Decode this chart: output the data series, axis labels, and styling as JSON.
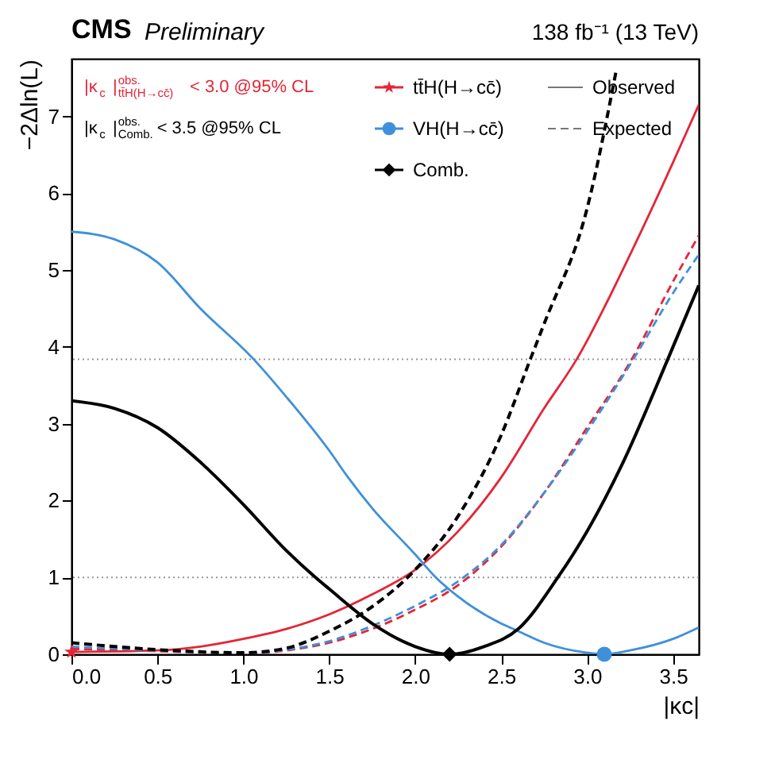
{
  "chart_data": {
    "type": "line",
    "title": "CMS Preliminary",
    "xlabel": "|κc|",
    "ylabel": "−2Δln(L)",
    "xlim": [
      0,
      3.65
    ],
    "xticks": [
      {
        "value": 0,
        "label": "0.0"
      },
      0.5,
      {
        "value": 1,
        "label": "1.0"
      },
      1.5,
      {
        "value": 2,
        "label": "2.0"
      },
      2.5,
      {
        "value": 3,
        "label": "3.0"
      },
      3.5
    ],
    "ylim": [
      0,
      7.75
    ],
    "yticks": [
      0,
      1,
      2,
      3,
      4,
      5,
      6,
      7
    ],
    "grid": false,
    "legend": "top",
    "series": [
      {
        "color": "#e42536",
        "line_style": "solid",
        "x": [
          0,
          0.5,
          0.75,
          1.0,
          1.25,
          1.5,
          1.75,
          2.0,
          2.25,
          2.5,
          2.75,
          2.94,
          3.25,
          3.5,
          3.62,
          3.65
        ],
        "values": [
          0.03,
          0.05,
          0.1,
          0.2,
          0.33,
          0.52,
          0.78,
          1.1,
          1.6,
          2.3,
          3.2,
          3.84,
          5.2,
          6.4,
          7.0,
          7.15
        ]
      },
      {
        "color": "#e42536",
        "line_style": "dashed",
        "x": [
          0,
          0.5,
          1.0,
          1.25,
          1.5,
          1.75,
          2.0,
          2.25,
          2.5,
          2.75,
          3.0,
          3.25,
          3.5,
          3.65
        ],
        "values": [
          0.07,
          0.04,
          0.01,
          0.05,
          0.15,
          0.33,
          0.58,
          0.9,
          1.4,
          2.1,
          2.95,
          3.8,
          4.85,
          5.45
        ]
      },
      {
        "color": "#3f90da",
        "line_style": "solid",
        "x": [
          0,
          0.25,
          0.5,
          0.75,
          1.06,
          1.25,
          1.5,
          1.61,
          1.75,
          2.0,
          2.12,
          2.25,
          2.5,
          2.6,
          2.75,
          3.0,
          3.1,
          3.25,
          3.5,
          3.65
        ],
        "values": [
          5.5,
          5.4,
          5.1,
          4.5,
          3.84,
          3.35,
          2.65,
          2.3,
          1.9,
          1.3,
          1.0,
          0.75,
          0.4,
          0.3,
          0.15,
          0.02,
          0,
          0.05,
          0.2,
          0.35
        ]
      },
      {
        "color": "#3f90da",
        "line_style": "dashed",
        "x": [
          0,
          0.5,
          1.0,
          1.25,
          1.5,
          1.75,
          2.0,
          2.25,
          2.5,
          2.75,
          3.0,
          3.27,
          3.5,
          3.65
        ],
        "values": [
          0.1,
          0.05,
          0.01,
          0.06,
          0.17,
          0.37,
          0.63,
          0.95,
          1.42,
          2.1,
          2.9,
          3.84,
          4.7,
          5.2
        ]
      },
      {
        "color": "#000000",
        "line_style": "solid",
        "x": [
          0,
          0.25,
          0.5,
          0.75,
          1.0,
          1.25,
          1.42,
          1.5,
          1.75,
          2.0,
          2.2,
          2.4,
          2.6,
          2.83,
          3.0,
          3.21,
          3.47,
          3.65
        ],
        "values": [
          3.3,
          3.2,
          2.95,
          2.5,
          1.95,
          1.35,
          1.0,
          0.85,
          0.4,
          0.1,
          0,
          0.1,
          0.33,
          1.0,
          1.6,
          2.5,
          3.84,
          4.8
        ]
      },
      {
        "color": "#000000",
        "line_style": "dashed",
        "x": [
          0,
          0.5,
          1.0,
          1.25,
          1.5,
          1.75,
          2.0,
          2.25,
          2.5,
          2.67,
          2.75,
          3.0,
          3.17
        ],
        "values": [
          0.15,
          0.06,
          0.02,
          0.08,
          0.3,
          0.62,
          1.1,
          1.8,
          2.85,
          3.84,
          4.3,
          5.8,
          7.6
        ]
      },
      {
        "type": "scatter",
        "name": "tt̄H(H→cc̄)",
        "color": "#e42536",
        "marker": "star",
        "x": [
          0
        ],
        "values": [
          0.03
        ]
      },
      {
        "type": "scatter",
        "name": "VH(H→cc̄)",
        "color": "#3f90da",
        "marker": "circle",
        "x": [
          3.1
        ],
        "values": [
          0
        ]
      },
      {
        "type": "scatter",
        "name": "Comb.",
        "color": "#000000",
        "marker": "diamond",
        "x": [
          2.2
        ],
        "values": [
          0
        ]
      }
    ],
    "ref_lines": [
      {
        "axis": "y",
        "value": 1,
        "color": "#999999",
        "line_style": "dotted"
      },
      {
        "axis": "y",
        "value": 3.84,
        "color": "#999999",
        "line_style": "dotted"
      }
    ],
    "annotations": [
      "|κ$_{c}$|$^{obs.}$$_{tt̄H(H→cc̄)}$ < 3.0 @95% CL",
      "|κ$_{c}$|$^{obs.}$$_{Comb.}$ < 3.5 @95% CL",
      "138 fb⁻¹ (13 TeV)",
      "Observed",
      "Expected"
    ]
  }
}
